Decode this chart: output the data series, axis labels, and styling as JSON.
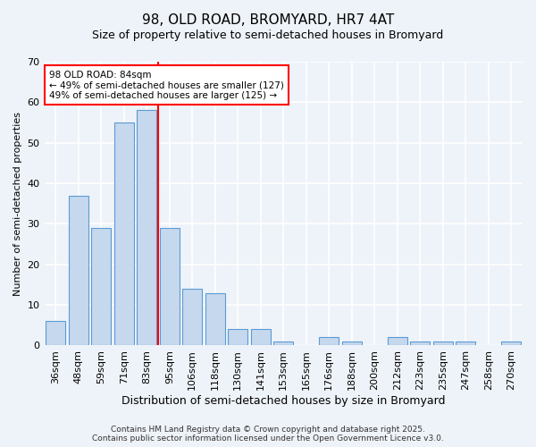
{
  "title_line1": "98, OLD ROAD, BROMYARD, HR7 4AT",
  "title_line2": "Size of property relative to semi-detached houses in Bromyard",
  "xlabel": "Distribution of semi-detached houses by size in Bromyard",
  "ylabel": "Number of semi-detached properties",
  "categories": [
    "36sqm",
    "48sqm",
    "59sqm",
    "71sqm",
    "83sqm",
    "95sqm",
    "106sqm",
    "118sqm",
    "130sqm",
    "141sqm",
    "153sqm",
    "165sqm",
    "176sqm",
    "188sqm",
    "200sqm",
    "212sqm",
    "223sqm",
    "235sqm",
    "247sqm",
    "258sqm",
    "270sqm"
  ],
  "values": [
    6,
    37,
    29,
    55,
    58,
    29,
    14,
    13,
    4,
    4,
    1,
    0,
    2,
    1,
    0,
    2,
    1,
    1,
    1,
    0,
    1
  ],
  "bar_color": "#c5d8ed",
  "bar_edge_color": "#5b9bd5",
  "ylim": [
    0,
    70
  ],
  "yticks": [
    0,
    10,
    20,
    30,
    40,
    50,
    60,
    70
  ],
  "vline_index": 4,
  "vline_color": "red",
  "annotation_title": "98 OLD ROAD: 84sqm",
  "annotation_line1": "← 49% of semi-detached houses are smaller (127)",
  "annotation_line2": "49% of semi-detached houses are larger (125) →",
  "annotation_box_color": "white",
  "annotation_box_edge_color": "red",
  "footer_line1": "Contains HM Land Registry data © Crown copyright and database right 2025.",
  "footer_line2": "Contains public sector information licensed under the Open Government Licence v3.0.",
  "bg_color": "#eef3f9",
  "plot_bg_color": "#eef3f9",
  "title1_fontsize": 11,
  "title2_fontsize": 9,
  "ylabel_fontsize": 8,
  "xlabel_fontsize": 9,
  "tick_fontsize": 8,
  "ann_fontsize": 7.5,
  "footer_fontsize": 6.5
}
